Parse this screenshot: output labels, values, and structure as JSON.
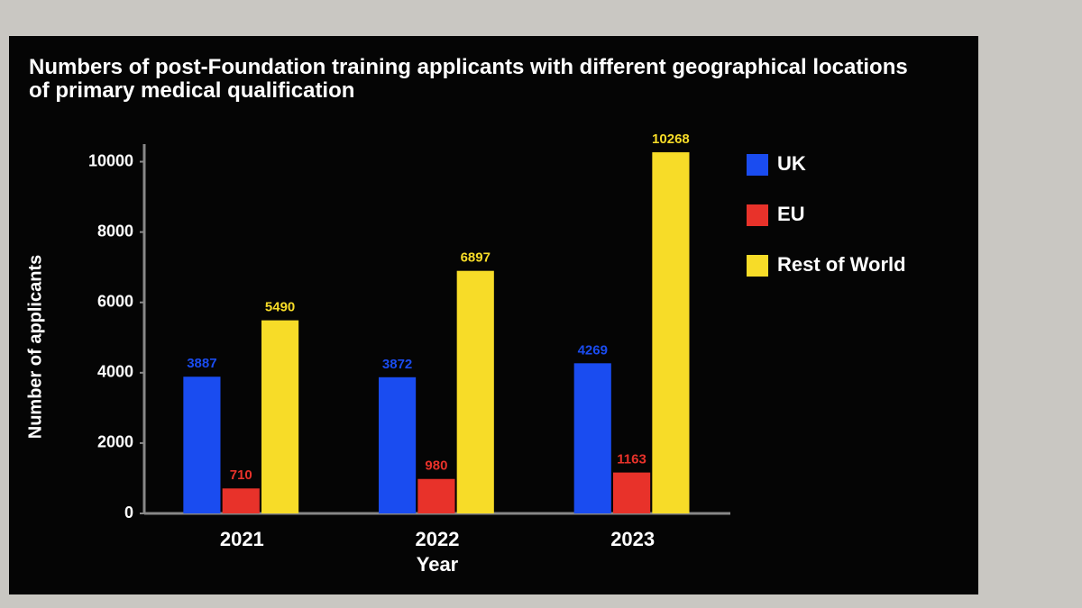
{
  "chart_data": {
    "type": "bar",
    "title": "Numbers of post-Foundation training applicants with different geographical locations of primary medical qualification",
    "x_label": "Year",
    "y_label": "Number of applicants",
    "categories": [
      "2021",
      "2022",
      "2023"
    ],
    "series": [
      {
        "name": "UK",
        "color": "#1a4cf0",
        "values": [
          3887,
          3872,
          4269
        ]
      },
      {
        "name": "EU",
        "color": "#e8322a",
        "values": [
          710,
          980,
          1163
        ]
      },
      {
        "name": "Rest of World",
        "color": "#f7dc28",
        "values": [
          5490,
          6897,
          10268
        ]
      }
    ],
    "ylim": [
      0,
      10500
    ],
    "yticks": [
      0,
      2000,
      4000,
      6000,
      8000,
      10000
    ],
    "legend": "right",
    "grid": false
  }
}
